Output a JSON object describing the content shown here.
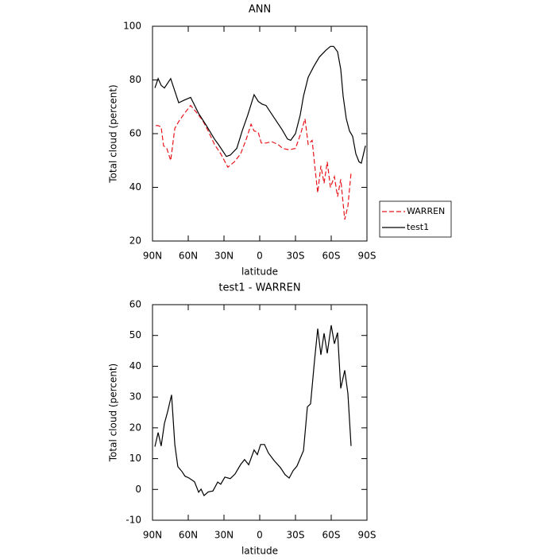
{
  "chart_data": [
    {
      "type": "line",
      "title": "ANN",
      "xlabel": "latitude",
      "ylabel": "Total cloud (percent)",
      "xlim": [
        90,
        -90
      ],
      "ylim": [
        20,
        100
      ],
      "xticks": [
        {
          "value": 90,
          "label": "90N"
        },
        {
          "value": 60,
          "label": "60N"
        },
        {
          "value": 30,
          "label": "30N"
        },
        0,
        {
          "value": -30,
          "label": "30S"
        },
        {
          "value": -60,
          "label": "60S"
        },
        {
          "value": -90,
          "label": "90S"
        }
      ],
      "yticks": [
        20,
        40,
        60,
        80,
        100
      ],
      "legend": "right",
      "series": [
        {
          "name": "WARREN",
          "color": "#e8141c",
          "dash": true,
          "x": [
            87.3,
            85.3,
            82.7,
            80.7,
            78,
            74.7,
            71.3,
            68,
            63.3,
            58,
            53.3,
            48,
            43.3,
            38,
            32.7,
            26.7,
            21.3,
            16,
            11.3,
            7.3,
            4.7,
            1.3,
            -1.3,
            -5.3,
            -10,
            -15.3,
            -19.3,
            -24.7,
            -30,
            -34,
            -38,
            -40.7,
            -44,
            -46.7,
            -48.7,
            -51.3,
            -54,
            -56.7,
            -59.3,
            -62.7,
            -65.3,
            -68,
            -71.3,
            -74,
            -76.7
          ],
          "values": [
            63,
            63,
            62.5,
            55.5,
            54.5,
            50,
            62,
            64.5,
            67.5,
            70.5,
            68,
            65,
            61,
            56,
            52.5,
            47.5,
            49.5,
            52.5,
            58,
            63.5,
            61,
            60.5,
            56.5,
            56.5,
            57,
            56,
            54.5,
            54,
            54.5,
            59.5,
            65.5,
            56,
            57.5,
            46,
            38,
            48,
            41.5,
            49.5,
            40,
            44,
            36.5,
            43,
            28,
            33,
            45.5
          ]
        },
        {
          "name": "test1",
          "color": "#000000",
          "dash": false,
          "x": [
            88,
            85.3,
            82.7,
            80,
            74.7,
            68,
            63.3,
            58,
            51.3,
            44.7,
            38,
            34.7,
            28,
            24.7,
            19.3,
            14.7,
            10,
            4.7,
            1.3,
            -2,
            -5.3,
            -12,
            -18.7,
            -23.3,
            -26,
            -30,
            -34,
            -36.7,
            -40.7,
            -45.3,
            -50,
            -55.3,
            -59.3,
            -62,
            -65.3,
            -68,
            -70,
            -72.7,
            -75.3,
            -78,
            -80.7,
            -83.3,
            -85.3,
            -88.7
          ],
          "values": [
            77,
            80.5,
            78,
            77,
            80.5,
            71.5,
            72.5,
            73.5,
            67.5,
            63,
            58,
            56,
            51.5,
            52,
            54.5,
            61,
            67,
            74.5,
            72,
            71,
            70.5,
            66,
            61.5,
            58,
            57.5,
            60,
            67,
            74,
            81,
            85,
            88.5,
            91,
            92.5,
            92.5,
            90.5,
            84,
            74,
            65.5,
            61,
            59,
            52.5,
            49.5,
            49,
            55.5
          ]
        }
      ]
    },
    {
      "type": "line",
      "title": "test1 - WARREN",
      "xlabel": "latitude",
      "ylabel": "Total cloud (percent)",
      "xlim": [
        90,
        -90
      ],
      "ylim": [
        -10,
        60
      ],
      "xticks": [
        {
          "value": 90,
          "label": "90N"
        },
        {
          "value": 60,
          "label": "60N"
        },
        {
          "value": 30,
          "label": "30N"
        },
        0,
        {
          "value": -30,
          "label": "30S"
        },
        {
          "value": -60,
          "label": "60S"
        },
        {
          "value": -90,
          "label": "90S"
        }
      ],
      "yticks": [
        -10,
        0,
        10,
        20,
        30,
        40,
        50,
        60
      ],
      "series": [
        {
          "color": "#000000",
          "dash": false,
          "x": [
            88,
            85.3,
            82.7,
            80,
            77.3,
            74,
            71.3,
            68.7,
            65.3,
            62.7,
            59.3,
            54.7,
            51.3,
            49.3,
            46.7,
            43.3,
            39.3,
            35.3,
            32.7,
            29.3,
            24.7,
            20.7,
            16,
            12.7,
            9.3,
            4.7,
            2,
            -0.7,
            -4,
            -7.3,
            -12,
            -17.3,
            -21.3,
            -24.7,
            -28,
            -31.3,
            -36.7,
            -40,
            -42.7,
            -46,
            -48.7,
            -51.3,
            -54,
            -56.7,
            -60,
            -62.7,
            -65.3,
            -68,
            -71.3,
            -74,
            -76.7
          ],
          "values": [
            13.9,
            18.5,
            14.1,
            21.4,
            25.3,
            30.7,
            14.6,
            7.4,
            5.8,
            4.3,
            3.7,
            2.5,
            -0.9,
            0.1,
            -2,
            -0.8,
            -0.5,
            2.4,
            1.7,
            4,
            3.5,
            5,
            8.1,
            9.7,
            8,
            12.8,
            11.3,
            14.6,
            14.6,
            11.8,
            9.4,
            7.1,
            4.8,
            3.7,
            6.1,
            7.6,
            12.6,
            26.8,
            27.8,
            41.9,
            52.2,
            43.7,
            50.7,
            44.2,
            53.3,
            47.3,
            50.9,
            32.8,
            38.7,
            31.2,
            14.1
          ]
        }
      ]
    }
  ]
}
